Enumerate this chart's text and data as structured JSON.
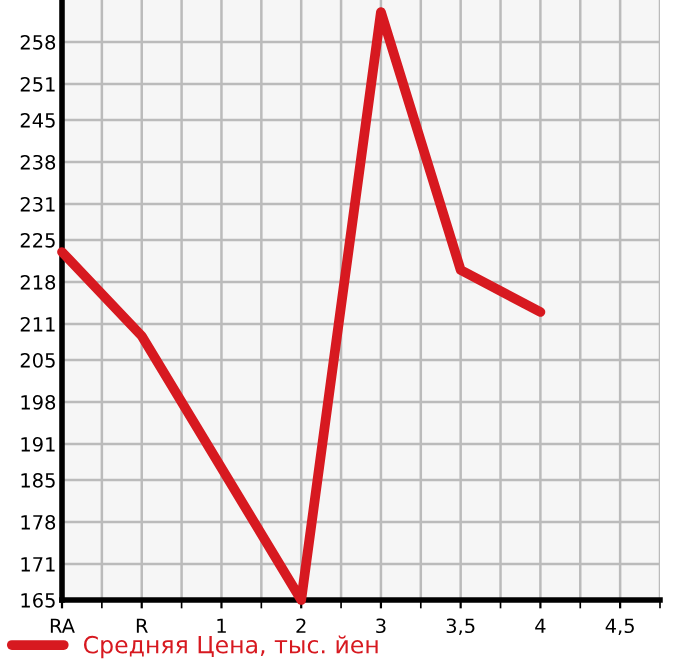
{
  "chart_data": {
    "type": "line",
    "categories": [
      "RA",
      "R",
      "1",
      "2",
      "3",
      "3,5",
      "4",
      "4,5"
    ],
    "series": [
      {
        "name": "Средняя Цена, тыс. йен",
        "color": "#d71920",
        "values": [
          223,
          209,
          187,
          165,
          263,
          220,
          213,
          null
        ]
      }
    ],
    "ylim": [
      165,
      265
    ],
    "yticks": [
      165,
      171,
      178,
      185,
      191,
      198,
      205,
      211,
      218,
      225,
      231,
      238,
      245,
      251,
      258
    ],
    "grid": true,
    "legend": "bottom",
    "marker": "none",
    "line_style": "solid"
  }
}
